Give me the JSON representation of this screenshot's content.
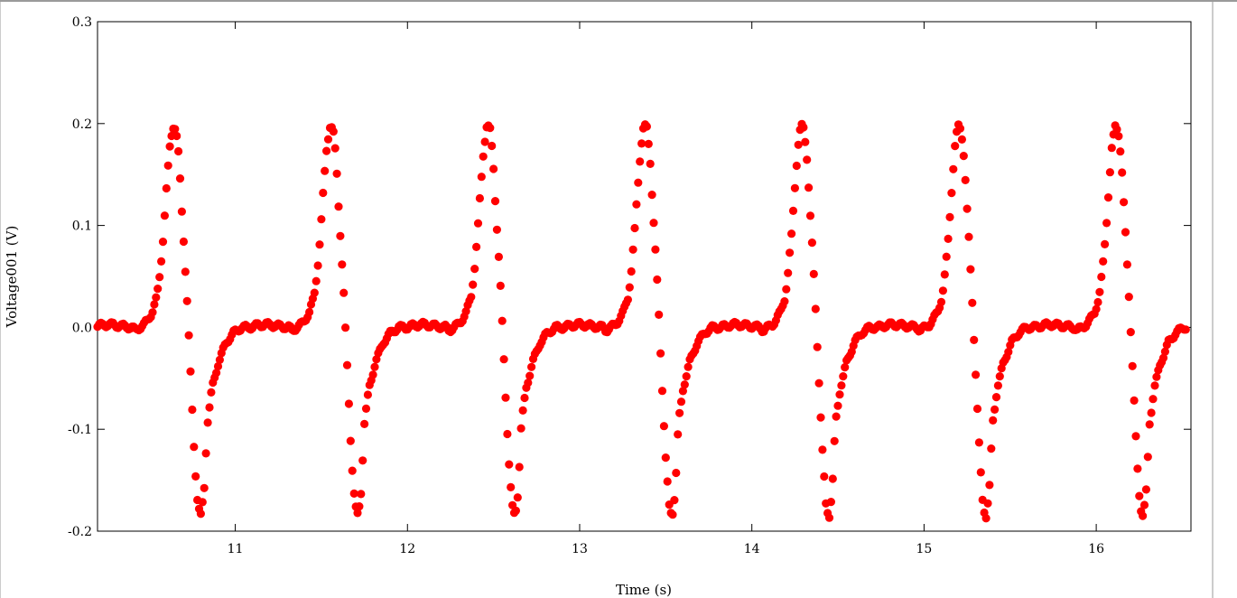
{
  "chart_data": {
    "type": "scatter",
    "xlabel": "Time (s)",
    "ylabel": "Voltage001 (V)",
    "xlim": [
      10.2,
      16.55
    ],
    "ylim": [
      -0.2,
      0.3
    ],
    "xticks": [
      11,
      12,
      13,
      14,
      15,
      16
    ],
    "yticks": [
      -0.2,
      -0.1,
      0.0,
      0.1,
      0.2,
      0.3
    ],
    "ytick_labels": [
      "-0.2",
      "-0.1",
      "0.0",
      "0.1",
      "0.2",
      "0.3"
    ],
    "grid": false,
    "legend": "none",
    "marker_color": "#ff0000",
    "series": [
      {
        "period_s": 0.912,
        "sample_interval_s": 0.01,
        "waveform_phase": [
          0.0,
          0.02,
          0.05,
          0.08,
          0.1,
          0.13,
          0.16,
          0.18,
          0.2,
          0.22,
          0.24,
          0.26,
          0.28,
          0.3,
          0.32,
          0.33,
          0.35,
          0.37,
          0.39,
          0.4,
          0.42,
          0.44,
          0.46,
          0.48,
          0.51,
          0.55,
          0.6,
          0.65,
          0.7,
          0.75,
          0.8,
          0.85,
          0.9,
          0.95,
          1.0
        ],
        "waveform_value": [
          0.0,
          -0.003,
          0.0,
          0.003,
          0.007,
          0.015,
          0.03,
          0.055,
          0.09,
          0.135,
          0.175,
          0.198,
          0.195,
          0.165,
          0.11,
          0.085,
          0.03,
          -0.035,
          -0.1,
          -0.13,
          -0.175,
          -0.186,
          -0.16,
          -0.095,
          -0.06,
          -0.035,
          -0.015,
          -0.005,
          0.0,
          0.0,
          0.002,
          0.003,
          0.002,
          0.001,
          0.0
        ],
        "x_start": 10.2,
        "x_end": 16.52,
        "first_minimum_x": 10.81,
        "minimum_value": -0.188,
        "peak_value": 0.2
      }
    ]
  }
}
